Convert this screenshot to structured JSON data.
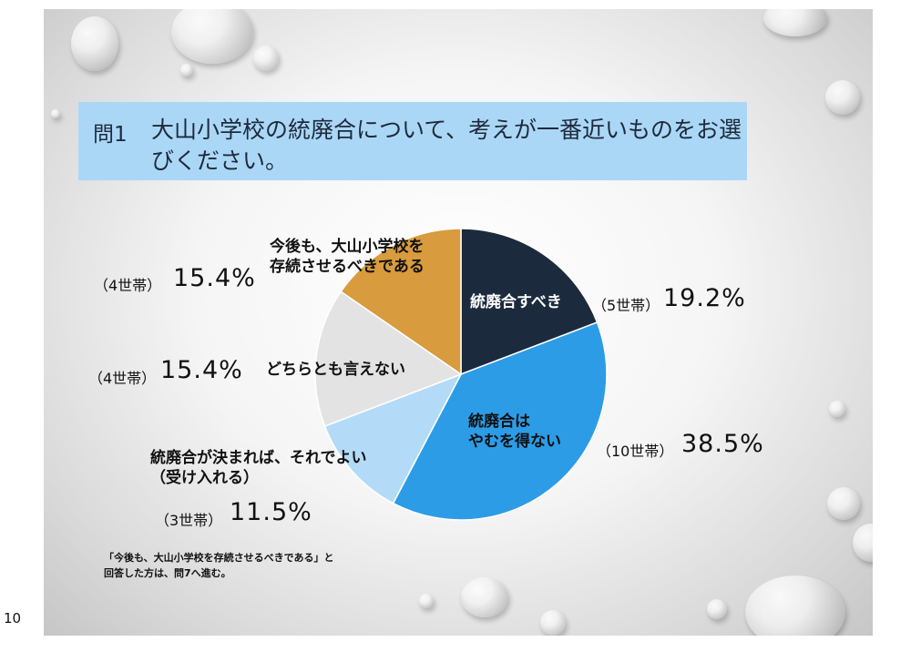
{
  "question": {
    "number": "問1",
    "text": "大山小学校の統廃合について、考えが一番近いものをお選びください。"
  },
  "chart_data": {
    "type": "pie",
    "title": "問1 大山小学校の統廃合について、考えが一番近いものをお選びください。",
    "start": "12 o'clock, clockwise",
    "slices": [
      {
        "label": "統廃合すべき",
        "households": "（5世帯）",
        "value": 19.2,
        "value_text": "19.2%",
        "color": "#1c2a3d"
      },
      {
        "label": "統廃合はやむを得ない",
        "households": "（10世帯）",
        "value": 38.5,
        "value_text": "38.5%",
        "color": "#2c9ce6"
      },
      {
        "label": "統廃合が決まれば、それでよい（受け入れる）",
        "households": "（3世帯）",
        "value": 11.5,
        "value_text": "11.5%",
        "color": "#b3dbf7"
      },
      {
        "label": "どちらとも言えない",
        "households": "（4世帯）",
        "value": 15.4,
        "value_text": "15.4%",
        "color": "#e3e3e3"
      },
      {
        "label": "今後も、大山小学校を存続させるべきである",
        "households": "（4世帯）",
        "value": 15.4,
        "value_text": "15.4%",
        "color": "#d89b3d"
      }
    ]
  },
  "labels": {
    "s0_line1": "統廃合すべき",
    "s1_line1": "統廃合は",
    "s1_line2": "やむを得ない",
    "s2_line1": "統廃合が決まれば、それでよい",
    "s2_line2": "（受け入れる）",
    "s3_line1": "どちらとも言えない",
    "s4_line1": "今後も、大山小学校を",
    "s4_line2": "存続させるべきである"
  },
  "footnote": {
    "line1": "「今後も、大山小学校を存続させるべきである」と",
    "line2": "回答した方は、問7へ進む。"
  },
  "page_number": "10",
  "colors": {
    "question_bg": "#abd7f7"
  }
}
